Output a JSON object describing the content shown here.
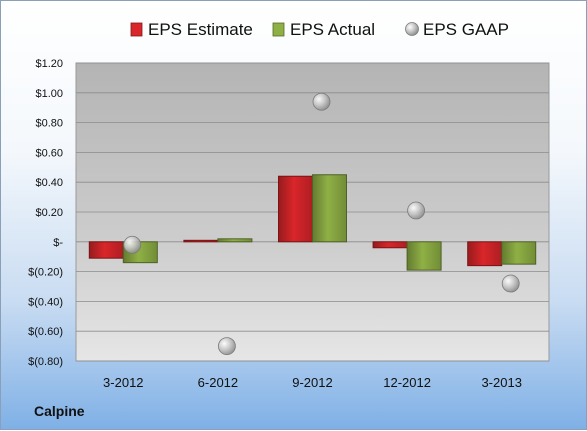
{
  "company": "Calpine",
  "chart_data": {
    "type": "bar",
    "categories": [
      "3-2012",
      "6-2012",
      "9-2012",
      "12-2012",
      "3-2013"
    ],
    "series": [
      {
        "name": "EPS Estimate",
        "kind": "bar",
        "color": "#d9262a",
        "values": [
          -0.11,
          0.01,
          0.44,
          -0.04,
          -0.16
        ]
      },
      {
        "name": "EPS Actual",
        "kind": "bar",
        "color": "#8fb045",
        "values": [
          -0.14,
          0.02,
          0.45,
          -0.19,
          -0.15
        ]
      },
      {
        "name": "EPS GAAP",
        "kind": "marker",
        "color": "#b8b8b8",
        "values": [
          -0.02,
          -0.7,
          0.94,
          0.21,
          -0.28
        ]
      }
    ],
    "yticks": [
      1.2,
      1.0,
      0.8,
      0.6,
      0.4,
      0.2,
      0,
      -0.2,
      -0.4,
      -0.6,
      -0.8
    ],
    "ytick_labels": [
      "$1.20",
      "$1.00",
      "$0.80",
      "$0.60",
      "$0.40",
      "$0.20",
      "$-",
      "$(0.20)",
      "$(0.40)",
      "$(0.60)",
      "$(0.80)"
    ],
    "ylim": [
      -0.8,
      1.2
    ],
    "legend_position": "top",
    "grid": true
  }
}
